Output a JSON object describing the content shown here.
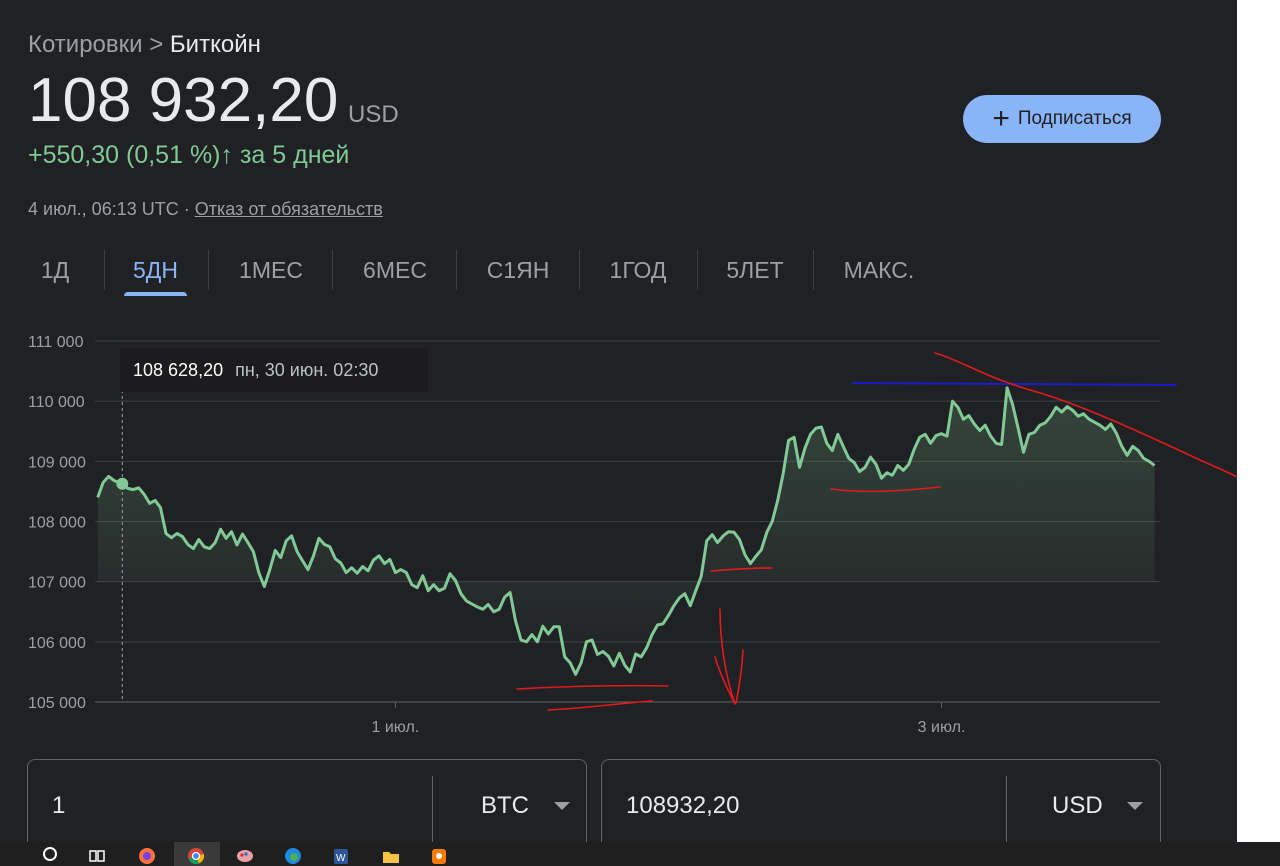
{
  "header": {
    "breadcrumb_root": "Котировки",
    "breadcrumb_sep": ">",
    "breadcrumb_current": "Биткойн",
    "price": "108 932,20",
    "currency": "USD",
    "change": "+550,30 (0,51 %)",
    "change_period": "за 5 дней",
    "timestamp": "4 июл., 06:13 UTC ·",
    "disclaimer": "Отказ от обязательств",
    "subscribe_label": "Подписаться"
  },
  "tabs": [
    {
      "label": "1Д",
      "active": false
    },
    {
      "label": "5ДН",
      "active": true
    },
    {
      "label": "1МЕС",
      "active": false
    },
    {
      "label": "6МЕС",
      "active": false
    },
    {
      "label": "С1ЯН",
      "active": false
    },
    {
      "label": "1ГОД",
      "active": false
    },
    {
      "label": "5ЛЕТ",
      "active": false
    },
    {
      "label": "МАКС.",
      "active": false
    }
  ],
  "tooltip": {
    "value": "108 628,20",
    "time": "пн, 30 июн. 02:30"
  },
  "chart_data": {
    "type": "area",
    "y_ticks": [
      "111 000",
      "110 000",
      "109 000",
      "108 000",
      "107 000",
      "106 000",
      "105 000"
    ],
    "ylim": [
      105000,
      111000
    ],
    "x_ticks": [
      {
        "label": "1 июл.",
        "x": 1.0
      },
      {
        "label": "3 июл.",
        "x": 3.0
      }
    ],
    "xlim": [
      -0.1,
      3.8
    ],
    "hover_point": {
      "x": 0.0,
      "y": 108628
    },
    "line_color": "#81c995",
    "points": [
      [
        -0.09,
        108400
      ],
      [
        -0.07,
        108650
      ],
      [
        -0.05,
        108750
      ],
      [
        -0.03,
        108680
      ],
      [
        0.0,
        108628
      ],
      [
        0.02,
        108550
      ],
      [
        0.04,
        108530
      ],
      [
        0.06,
        108560
      ],
      [
        0.08,
        108450
      ],
      [
        0.1,
        108300
      ],
      [
        0.12,
        108350
      ],
      [
        0.14,
        108230
      ],
      [
        0.16,
        107800
      ],
      [
        0.18,
        107730
      ],
      [
        0.2,
        107800
      ],
      [
        0.22,
        107750
      ],
      [
        0.24,
        107620
      ],
      [
        0.26,
        107550
      ],
      [
        0.28,
        107700
      ],
      [
        0.3,
        107580
      ],
      [
        0.32,
        107550
      ],
      [
        0.34,
        107650
      ],
      [
        0.36,
        107870
      ],
      [
        0.38,
        107720
      ],
      [
        0.4,
        107830
      ],
      [
        0.42,
        107610
      ],
      [
        0.44,
        107790
      ],
      [
        0.46,
        107650
      ],
      [
        0.48,
        107500
      ],
      [
        0.5,
        107150
      ],
      [
        0.52,
        106920
      ],
      [
        0.54,
        107200
      ],
      [
        0.56,
        107520
      ],
      [
        0.58,
        107400
      ],
      [
        0.6,
        107680
      ],
      [
        0.62,
        107760
      ],
      [
        0.64,
        107500
      ],
      [
        0.66,
        107350
      ],
      [
        0.68,
        107200
      ],
      [
        0.7,
        107430
      ],
      [
        0.72,
        107720
      ],
      [
        0.74,
        107620
      ],
      [
        0.76,
        107580
      ],
      [
        0.78,
        107380
      ],
      [
        0.8,
        107310
      ],
      [
        0.82,
        107150
      ],
      [
        0.84,
        107230
      ],
      [
        0.86,
        107140
      ],
      [
        0.88,
        107250
      ],
      [
        0.9,
        107180
      ],
      [
        0.92,
        107360
      ],
      [
        0.94,
        107430
      ],
      [
        0.96,
        107300
      ],
      [
        0.98,
        107370
      ],
      [
        1.0,
        107150
      ],
      [
        1.02,
        107200
      ],
      [
        1.04,
        107150
      ],
      [
        1.06,
        106950
      ],
      [
        1.08,
        106900
      ],
      [
        1.1,
        107100
      ],
      [
        1.12,
        106850
      ],
      [
        1.14,
        106950
      ],
      [
        1.16,
        106850
      ],
      [
        1.18,
        106890
      ],
      [
        1.2,
        107130
      ],
      [
        1.22,
        107020
      ],
      [
        1.24,
        106800
      ],
      [
        1.26,
        106680
      ],
      [
        1.28,
        106630
      ],
      [
        1.3,
        106580
      ],
      [
        1.32,
        106540
      ],
      [
        1.34,
        106620
      ],
      [
        1.36,
        106500
      ],
      [
        1.38,
        106540
      ],
      [
        1.4,
        106740
      ],
      [
        1.42,
        106820
      ],
      [
        1.44,
        106350
      ],
      [
        1.46,
        106030
      ],
      [
        1.48,
        106000
      ],
      [
        1.5,
        106120
      ],
      [
        1.52,
        106000
      ],
      [
        1.54,
        106260
      ],
      [
        1.56,
        106130
      ],
      [
        1.58,
        106250
      ],
      [
        1.6,
        106250
      ],
      [
        1.62,
        105750
      ],
      [
        1.64,
        105650
      ],
      [
        1.66,
        105460
      ],
      [
        1.68,
        105650
      ],
      [
        1.7,
        106000
      ],
      [
        1.72,
        106030
      ],
      [
        1.74,
        105790
      ],
      [
        1.76,
        105840
      ],
      [
        1.78,
        105760
      ],
      [
        1.8,
        105600
      ],
      [
        1.82,
        105810
      ],
      [
        1.84,
        105610
      ],
      [
        1.86,
        105500
      ],
      [
        1.88,
        105800
      ],
      [
        1.9,
        105750
      ],
      [
        1.92,
        105900
      ],
      [
        1.94,
        106120
      ],
      [
        1.96,
        106280
      ],
      [
        1.98,
        106300
      ],
      [
        2.0,
        106440
      ],
      [
        2.02,
        106600
      ],
      [
        2.04,
        106730
      ],
      [
        2.06,
        106800
      ],
      [
        2.08,
        106600
      ],
      [
        2.1,
        106850
      ],
      [
        2.12,
        107090
      ],
      [
        2.14,
        107680
      ],
      [
        2.16,
        107780
      ],
      [
        2.18,
        107650
      ],
      [
        2.2,
        107760
      ],
      [
        2.22,
        107830
      ],
      [
        2.24,
        107820
      ],
      [
        2.26,
        107700
      ],
      [
        2.28,
        107450
      ],
      [
        2.3,
        107300
      ],
      [
        2.32,
        107420
      ],
      [
        2.34,
        107530
      ],
      [
        2.36,
        107820
      ],
      [
        2.38,
        108000
      ],
      [
        2.4,
        108350
      ],
      [
        2.42,
        108800
      ],
      [
        2.44,
        109350
      ],
      [
        2.46,
        109400
      ],
      [
        2.48,
        108900
      ],
      [
        2.5,
        109220
      ],
      [
        2.52,
        109450
      ],
      [
        2.54,
        109550
      ],
      [
        2.56,
        109570
      ],
      [
        2.58,
        109300
      ],
      [
        2.6,
        109180
      ],
      [
        2.62,
        109450
      ],
      [
        2.64,
        109250
      ],
      [
        2.66,
        109050
      ],
      [
        2.68,
        108980
      ],
      [
        2.7,
        108830
      ],
      [
        2.72,
        108900
      ],
      [
        2.74,
        109070
      ],
      [
        2.76,
        108950
      ],
      [
        2.78,
        108720
      ],
      [
        2.8,
        108810
      ],
      [
        2.82,
        108770
      ],
      [
        2.84,
        108930
      ],
      [
        2.86,
        108850
      ],
      [
        2.88,
        108950
      ],
      [
        2.9,
        109200
      ],
      [
        2.92,
        109400
      ],
      [
        2.94,
        109450
      ],
      [
        2.96,
        109300
      ],
      [
        2.98,
        109430
      ],
      [
        3.0,
        109460
      ],
      [
        3.02,
        109420
      ],
      [
        3.04,
        110000
      ],
      [
        3.06,
        109900
      ],
      [
        3.08,
        109700
      ],
      [
        3.1,
        109760
      ],
      [
        3.12,
        109620
      ],
      [
        3.14,
        109510
      ],
      [
        3.16,
        109600
      ],
      [
        3.18,
        109420
      ],
      [
        3.2,
        109300
      ],
      [
        3.22,
        109280
      ],
      [
        3.24,
        110220
      ],
      [
        3.26,
        109950
      ],
      [
        3.28,
        109560
      ],
      [
        3.3,
        109150
      ],
      [
        3.32,
        109450
      ],
      [
        3.34,
        109480
      ],
      [
        3.36,
        109600
      ],
      [
        3.38,
        109640
      ],
      [
        3.4,
        109750
      ],
      [
        3.42,
        109900
      ],
      [
        3.44,
        109820
      ],
      [
        3.46,
        109910
      ],
      [
        3.48,
        109850
      ],
      [
        3.5,
        109750
      ],
      [
        3.52,
        109790
      ],
      [
        3.54,
        109700
      ],
      [
        3.56,
        109650
      ],
      [
        3.58,
        109600
      ],
      [
        3.6,
        109530
      ],
      [
        3.62,
        109620
      ],
      [
        3.64,
        109470
      ],
      [
        3.66,
        109250
      ],
      [
        3.68,
        109100
      ],
      [
        3.7,
        109250
      ],
      [
        3.72,
        109180
      ],
      [
        3.74,
        109050
      ],
      [
        3.76,
        109000
      ],
      [
        3.78,
        108930
      ]
    ]
  },
  "converter": {
    "from_value": "1",
    "from_unit": "BTC",
    "to_value": "108932,20",
    "to_unit": "USD"
  },
  "annotations": {
    "red": "#e01b1b",
    "blue": "#1c1cc8"
  },
  "taskbar": {
    "icons": [
      "search-icon",
      "task-view-icon",
      "firefox-icon",
      "chrome-icon",
      "paint-icon",
      "edge-icon",
      "word-icon",
      "explorer-icon",
      "app-icon"
    ]
  }
}
